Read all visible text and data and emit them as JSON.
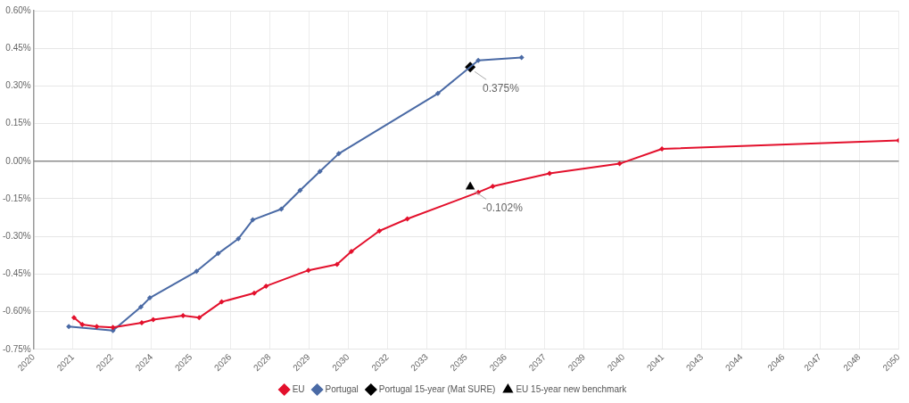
{
  "chart_data": {
    "type": "line",
    "xlim": [
      "2020-01-01",
      "2050-01-01"
    ],
    "xticks": [
      {
        "value": "2020-01-01",
        "label": "2020"
      },
      {
        "value": "2021-05-13",
        "label": "2021"
      },
      {
        "value": "2022-09-23",
        "label": "2022"
      },
      {
        "value": "2024-02-03",
        "label": "2024"
      },
      {
        "value": "2025-06-15",
        "label": "2025"
      },
      {
        "value": "2026-10-26",
        "label": "2026"
      },
      {
        "value": "2028-03-07",
        "label": "2028"
      },
      {
        "value": "2029-07-18",
        "label": "2029"
      },
      {
        "value": "2030-11-28",
        "label": "2030"
      },
      {
        "value": "2032-04-10",
        "label": "2032"
      },
      {
        "value": "2033-08-20",
        "label": "2033"
      },
      {
        "value": "2035-01-01",
        "label": "2035"
      },
      {
        "value": "2036-05-13",
        "label": "2036"
      },
      {
        "value": "2037-09-23",
        "label": "2037"
      },
      {
        "value": "2039-02-03",
        "label": "2039"
      },
      {
        "value": "2040-06-15",
        "label": "2040"
      },
      {
        "value": "2041-10-26",
        "label": "2041"
      },
      {
        "value": "2043-03-07",
        "label": "2043"
      },
      {
        "value": "2044-07-18",
        "label": "2044"
      },
      {
        "value": "2046-01-02",
        "label": "2046"
      },
      {
        "value": "2047-04-10",
        "label": "2047"
      },
      {
        "value": "2048-08-20",
        "label": "2048"
      },
      {
        "value": "2050-01-01",
        "label": "2050"
      }
    ],
    "ylim": [
      -0.75,
      0.6
    ],
    "yticks": [
      {
        "value": -0.75,
        "label": "-0.75%"
      },
      {
        "value": -0.6,
        "label": "-0.60%"
      },
      {
        "value": -0.45,
        "label": "-0.45%"
      },
      {
        "value": -0.3,
        "label": "-0.30%"
      },
      {
        "value": -0.15,
        "label": "-0.15%"
      },
      {
        "value": 0,
        "label": "0.00%"
      },
      {
        "value": 0.15,
        "label": "0.15%"
      },
      {
        "value": 0.3,
        "label": "0.30%"
      },
      {
        "value": 0.45,
        "label": "0.45%"
      },
      {
        "value": 0.6,
        "label": "0.60%"
      }
    ],
    "grid": true,
    "legend": "bottom",
    "marker": "diamond",
    "line_style": "solid",
    "ref_lines": [
      {
        "axis": "y",
        "value": 0,
        "color": "#8c8c8c"
      }
    ],
    "series": [
      {
        "name": "EU",
        "color": "#e3102c",
        "x": [
          "2021-05-27",
          "2021-09-09",
          "2022-03-11",
          "2022-10-02",
          "2023-10-02",
          "2024-02-24",
          "2025-03-08",
          "2025-09-28",
          "2026-07-10",
          "2027-08-26",
          "2028-01-23",
          "2029-07-13",
          "2030-07-10",
          "2031-01-08",
          "2031-12-28",
          "2032-12-17",
          "2035-06-03",
          "2035-12-03",
          "2037-11-22",
          "2040-04-27",
          "2041-10-16",
          "2050-01-01"
        ],
        "values": [
          -0.624,
          -0.651,
          -0.659,
          -0.663,
          -0.644,
          -0.632,
          -0.616,
          -0.624,
          -0.561,
          -0.526,
          -0.498,
          -0.435,
          -0.411,
          -0.36,
          -0.278,
          -0.23,
          -0.124,
          -0.1,
          -0.049,
          -0.01,
          0.049,
          0.083
        ]
      },
      {
        "name": "Portugal",
        "color": "#4a6aa5",
        "x": [
          "2021-03-22",
          "2022-10-02",
          "2023-09-21",
          "2024-01-12",
          "2025-08-26",
          "2026-05-27",
          "2027-02-07",
          "2027-08-08",
          "2028-08-03",
          "2029-03-30",
          "2029-12-06",
          "2030-08-01",
          "2034-01-08",
          "2035-06-03",
          "2036-12-03"
        ],
        "values": [
          -0.659,
          -0.675,
          -0.581,
          -0.545,
          -0.439,
          -0.368,
          -0.309,
          -0.234,
          -0.191,
          -0.116,
          -0.041,
          0.03,
          0.27,
          0.402,
          0.413
        ]
      },
      {
        "name": "Portugal 15-year (Mat SURE)",
        "type": "scatter",
        "marker": "diamond",
        "color": "#000000",
        "x": [
          "2035-02-21"
        ],
        "values": [
          0.375
        ],
        "value_labels": [
          "0.375%"
        ]
      },
      {
        "name": "EU 15-year new benchmark",
        "type": "scatter",
        "marker": "triangle",
        "color": "#000000",
        "x": [
          "2035-02-21"
        ],
        "values": [
          -0.102
        ],
        "value_labels": [
          "-0.102%"
        ]
      }
    ]
  }
}
